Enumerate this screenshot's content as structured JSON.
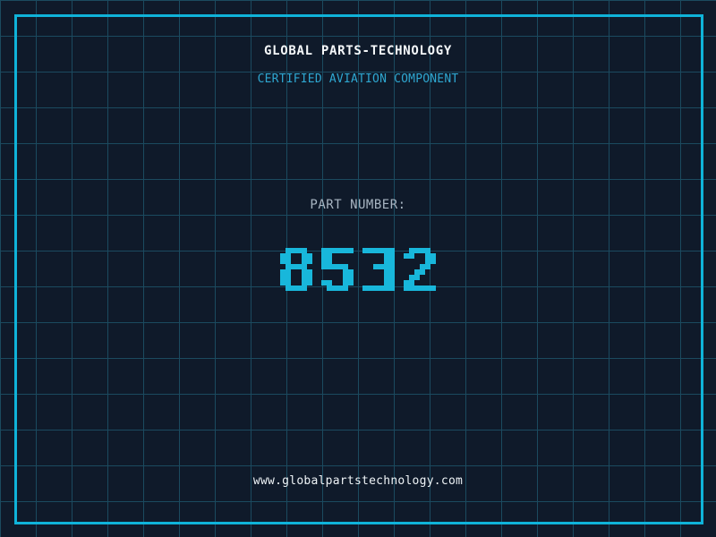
{
  "header": {
    "title": "GLOBAL PARTS-TECHNOLOGY",
    "subtitle": "CERTIFIED AVIATION COMPONENT"
  },
  "part": {
    "label": "PART NUMBER:",
    "number": "8532"
  },
  "footer": {
    "url": "www.globalpartstechnology.com"
  },
  "colors": {
    "background": "#0f1a2a",
    "grid_line": "#1b4a5f",
    "frame": "#0fb3d9",
    "digit": "#18b7db",
    "title_text": "#f5f8fa",
    "subtitle_text": "#2ea7d1",
    "label_text": "#a8b5c2",
    "url_text": "#eef3f6"
  }
}
